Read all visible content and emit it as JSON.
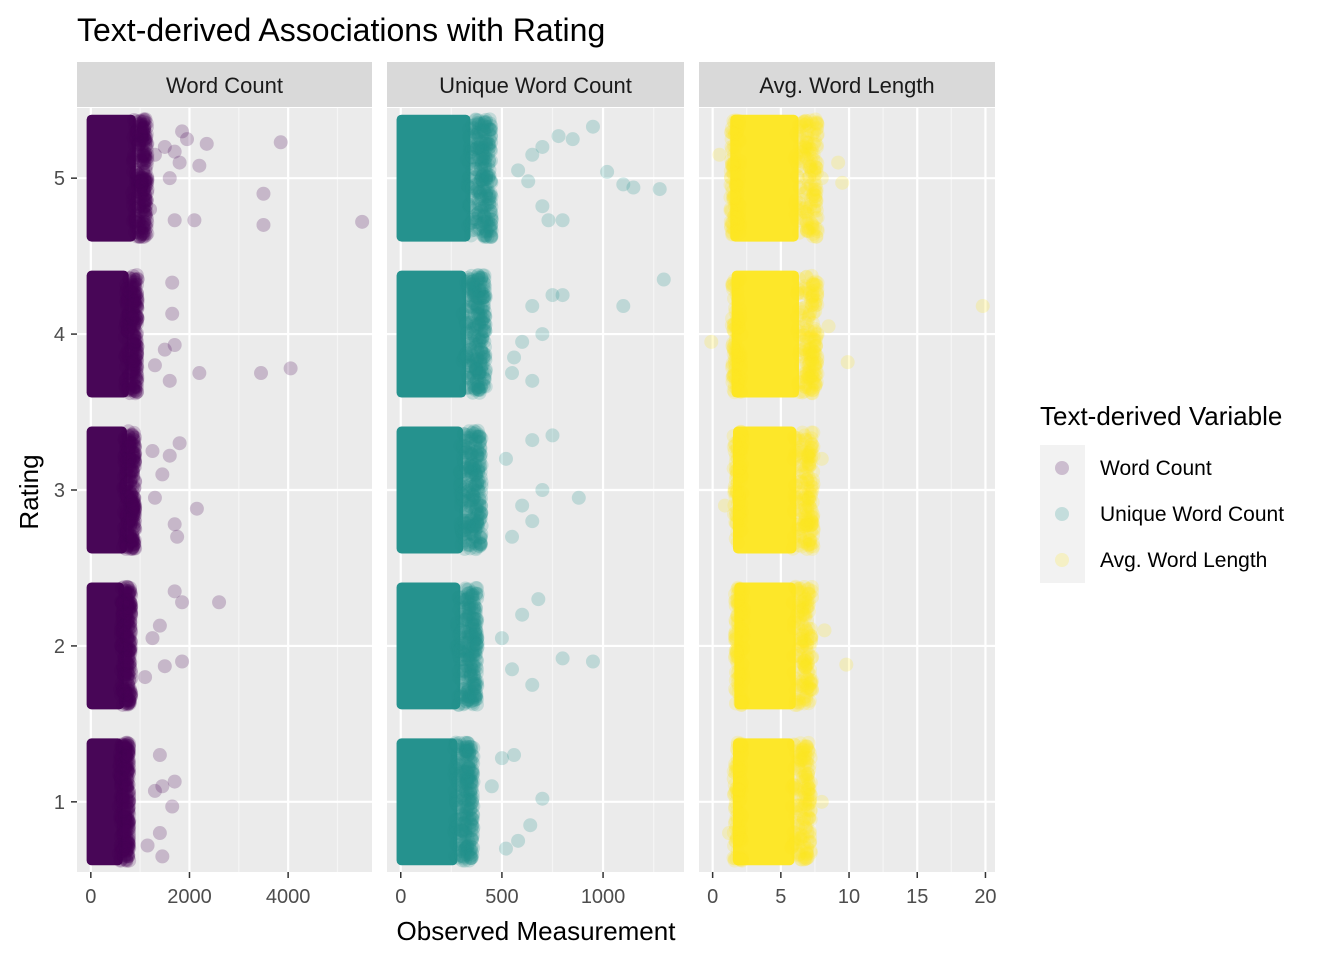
{
  "chart_data": {
    "type": "scatter",
    "title": "Text-derived Associations with Rating",
    "xlabel": "Observed Measurement",
    "ylabel": "Rating",
    "y_ticks": [
      1,
      2,
      3,
      4,
      5
    ],
    "ylim": [
      0.55,
      5.45
    ],
    "jitter": 0.38,
    "grid": true,
    "legend": {
      "title": "Text-derived Variable",
      "position": "right",
      "entries": [
        {
          "label": "Word Count",
          "color": "#440154"
        },
        {
          "label": "Unique Word Count",
          "color": "#21908C"
        },
        {
          "label": "Avg. Word Length",
          "color": "#FDE725"
        }
      ]
    },
    "panels": [
      {
        "name": "Word Count",
        "color": "#440154",
        "xlim": [
          -280,
          5700
        ],
        "x_ticks": [
          0,
          2000,
          4000
        ],
        "x_tick_labels": [
          "0",
          "2000",
          "4000"
        ],
        "core": [
          {
            "rating": 5,
            "min": 0,
            "max": 1150
          },
          {
            "rating": 4,
            "min": 0,
            "max": 950
          },
          {
            "rating": 3,
            "min": 0,
            "max": 900
          },
          {
            "rating": 2,
            "min": 0,
            "max": 820
          },
          {
            "rating": 1,
            "min": 0,
            "max": 780
          }
        ],
        "outliers": [
          {
            "rating": 5,
            "points": [
              [
                1850,
                0.3
              ],
              [
                1950,
                0.25
              ],
              [
                2350,
                0.22
              ],
              [
                3850,
                0.23
              ],
              [
                3500,
                -0.1
              ],
              [
                5500,
                -0.28
              ],
              [
                3500,
                -0.3
              ],
              [
                2100,
                -0.27
              ],
              [
                1700,
                -0.27
              ],
              [
                1600,
                0.0
              ],
              [
                1800,
                0.1
              ],
              [
                2200,
                0.08
              ],
              [
                1500,
                0.2
              ],
              [
                1300,
                0.15
              ],
              [
                1700,
                0.17
              ],
              [
                1200,
                -0.2
              ]
            ]
          },
          {
            "rating": 4,
            "points": [
              [
                1650,
                0.33
              ],
              [
                4050,
                -0.22
              ],
              [
                3450,
                -0.25
              ],
              [
                2200,
                -0.25
              ],
              [
                1650,
                0.13
              ],
              [
                1700,
                -0.07
              ],
              [
                1500,
                -0.1
              ],
              [
                1300,
                -0.2
              ],
              [
                1600,
                -0.3
              ]
            ]
          },
          {
            "rating": 3,
            "points": [
              [
                1800,
                0.3
              ],
              [
                2150,
                -0.12
              ],
              [
                1700,
                -0.22
              ],
              [
                1750,
                -0.3
              ],
              [
                1600,
                0.22
              ],
              [
                1450,
                0.1
              ],
              [
                1300,
                -0.05
              ],
              [
                1250,
                0.25
              ]
            ]
          },
          {
            "rating": 2,
            "points": [
              [
                1700,
                0.35
              ],
              [
                1850,
                0.28
              ],
              [
                2600,
                0.28
              ],
              [
                1400,
                0.13
              ],
              [
                1250,
                0.05
              ],
              [
                1850,
                -0.1
              ],
              [
                1500,
                -0.13
              ],
              [
                1100,
                -0.2
              ]
            ]
          },
          {
            "rating": 1,
            "points": [
              [
                1400,
                0.3
              ],
              [
                1700,
                0.13
              ],
              [
                1450,
                0.1
              ],
              [
                1300,
                0.07
              ],
              [
                1650,
                -0.03
              ],
              [
                1400,
                -0.2
              ],
              [
                1450,
                -0.35
              ],
              [
                1150,
                -0.28
              ]
            ]
          }
        ]
      },
      {
        "name": "Unique Word Count",
        "color": "#21908C",
        "xlim": [
          -68,
          1400
        ],
        "x_ticks": [
          0,
          500,
          1000
        ],
        "x_tick_labels": [
          "0",
          "500",
          "1000"
        ],
        "core": [
          {
            "rating": 5,
            "min": 0,
            "max": 450
          },
          {
            "rating": 4,
            "min": 0,
            "max": 420
          },
          {
            "rating": 3,
            "min": 0,
            "max": 400
          },
          {
            "rating": 2,
            "min": 0,
            "max": 380
          },
          {
            "rating": 1,
            "min": 0,
            "max": 360
          }
        ],
        "outliers": [
          {
            "rating": 5,
            "points": [
              [
                950,
                0.33
              ],
              [
                1020,
                0.04
              ],
              [
                1100,
                -0.04
              ],
              [
                1150,
                -0.06
              ],
              [
                1280,
                -0.07
              ],
              [
                850,
                0.25
              ],
              [
                780,
                0.27
              ],
              [
                700,
                0.2
              ],
              [
                650,
                0.15
              ],
              [
                800,
                -0.27
              ],
              [
                730,
                -0.27
              ],
              [
                700,
                -0.18
              ],
              [
                630,
                -0.02
              ],
              [
                580,
                0.05
              ]
            ]
          },
          {
            "rating": 4,
            "points": [
              [
                1300,
                0.35
              ],
              [
                1100,
                0.18
              ],
              [
                800,
                0.25
              ],
              [
                750,
                0.25
              ],
              [
                650,
                0.18
              ],
              [
                700,
                0.0
              ],
              [
                600,
                -0.05
              ],
              [
                560,
                -0.15
              ],
              [
                650,
                -0.3
              ],
              [
                550,
                -0.25
              ]
            ]
          },
          {
            "rating": 3,
            "points": [
              [
                880,
                -0.05
              ],
              [
                750,
                0.35
              ],
              [
                650,
                0.32
              ],
              [
                700,
                0.0
              ],
              [
                650,
                -0.2
              ],
              [
                550,
                -0.3
              ],
              [
                600,
                -0.1
              ],
              [
                520,
                0.2
              ]
            ]
          },
          {
            "rating": 2,
            "points": [
              [
                950,
                -0.1
              ],
              [
                800,
                -0.08
              ],
              [
                680,
                0.3
              ],
              [
                600,
                0.2
              ],
              [
                650,
                -0.25
              ],
              [
                550,
                -0.15
              ],
              [
                500,
                0.05
              ]
            ]
          },
          {
            "rating": 1,
            "points": [
              [
                700,
                0.02
              ],
              [
                560,
                0.3
              ],
              [
                500,
                0.28
              ],
              [
                640,
                -0.15
              ],
              [
                580,
                -0.25
              ],
              [
                520,
                -0.3
              ],
              [
                450,
                0.1
              ]
            ]
          }
        ]
      },
      {
        "name": "Avg. Word Length",
        "color": "#FDE725",
        "xlim": [
          -1,
          20.7
        ],
        "x_ticks": [
          0,
          5,
          10,
          15,
          20
        ],
        "x_tick_labels": [
          "0",
          "5",
          "10",
          "15",
          "20"
        ],
        "core": [
          {
            "rating": 5,
            "min": 1.6,
            "max": 7.7
          },
          {
            "rating": 4,
            "min": 1.7,
            "max": 7.7
          },
          {
            "rating": 3,
            "min": 1.8,
            "max": 7.4
          },
          {
            "rating": 2,
            "min": 1.9,
            "max": 7.3
          },
          {
            "rating": 1,
            "min": 1.8,
            "max": 7.2
          }
        ],
        "outliers": [
          {
            "rating": 5,
            "points": [
              [
                0.5,
                0.15
              ],
              [
                9.2,
                0.1
              ],
              [
                9.5,
                -0.03
              ],
              [
                8.0,
                0.0
              ]
            ]
          },
          {
            "rating": 4,
            "points": [
              [
                -0.1,
                -0.05
              ],
              [
                19.8,
                0.18
              ],
              [
                9.9,
                -0.18
              ],
              [
                8.5,
                0.05
              ]
            ]
          },
          {
            "rating": 3,
            "points": [
              [
                8.0,
                0.2
              ],
              [
                0.9,
                -0.1
              ]
            ]
          },
          {
            "rating": 2,
            "points": [
              [
                9.8,
                -0.12
              ],
              [
                8.2,
                0.1
              ]
            ]
          },
          {
            "rating": 1,
            "points": [
              [
                8.0,
                0.0
              ],
              [
                1.2,
                -0.2
              ]
            ]
          }
        ]
      }
    ]
  }
}
